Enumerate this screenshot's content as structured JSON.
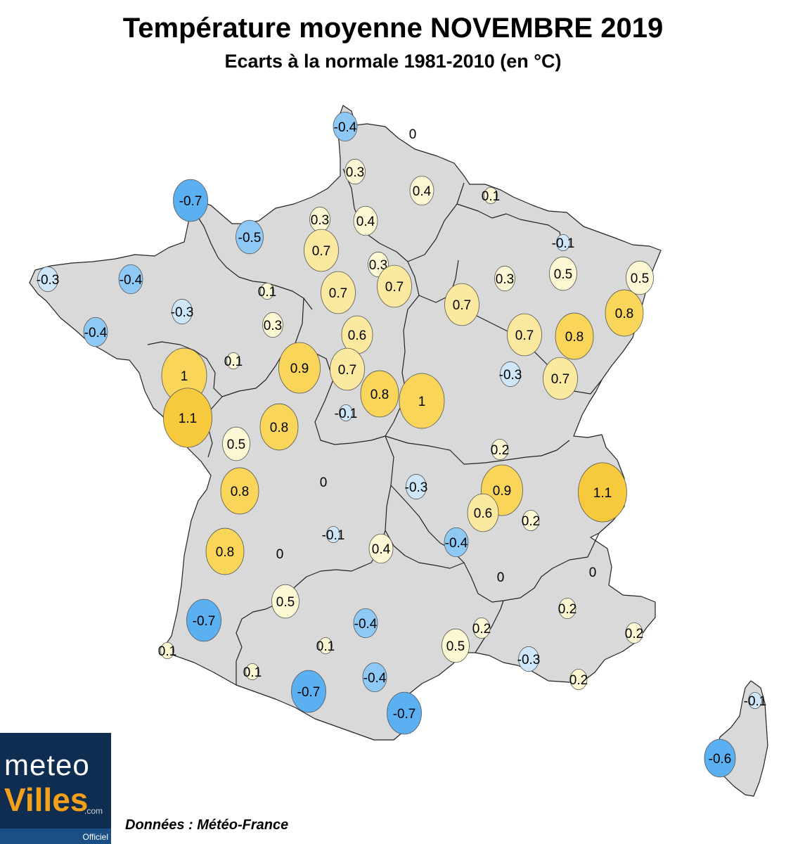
{
  "title": "Température moyenne NOVEMBRE 2019",
  "subtitle": "Ecarts à la normale 1981-2010 (en °C)",
  "source": "Données : Météo-France",
  "logo": {
    "line1": "meteo",
    "line2": "Villes",
    "suffix": ".com",
    "tag": "Officiel"
  },
  "colors": {
    "land": "#d9d9d9",
    "border": "#222222",
    "cold_strong": "#5ab0f0",
    "cold_mid": "#8ec8f5",
    "cold_light": "#cde6f8",
    "warm_light": "#fdf8d4",
    "warm_mid": "#fbe9a0",
    "warm_strong": "#f9d55a",
    "warm_max": "#f7c93c"
  },
  "stations": [
    {
      "label": "-0.4",
      "value": -0.4
    },
    {
      "label": "0",
      "value": 0
    },
    {
      "label": "0.3",
      "value": 0.3
    },
    {
      "label": "0.4",
      "value": 0.4
    },
    {
      "label": "-0.7",
      "value": -0.7
    },
    {
      "label": "0.1",
      "value": 0.1
    },
    {
      "label": "-0.5",
      "value": -0.5
    },
    {
      "label": "0.3",
      "value": 0.3
    },
    {
      "label": "0.4",
      "value": 0.4
    },
    {
      "label": "-0.1",
      "value": -0.1
    },
    {
      "label": "0.7",
      "value": 0.7
    },
    {
      "label": "0.3",
      "value": 0.3
    },
    {
      "label": "0.7",
      "value": 0.7
    },
    {
      "label": "0.5",
      "value": 0.5
    },
    {
      "label": "0.3",
      "value": 0.3
    },
    {
      "label": "0.5",
      "value": 0.5
    },
    {
      "label": "-0.3",
      "value": -0.3
    },
    {
      "label": "-0.4",
      "value": -0.4
    },
    {
      "label": "0.1",
      "value": 0.1
    },
    {
      "label": "0.7",
      "value": 0.7
    },
    {
      "label": "0.7",
      "value": 0.7
    },
    {
      "label": "0.7",
      "value": 0.7
    },
    {
      "label": "0.8",
      "value": 0.8
    },
    {
      "label": "-0.3",
      "value": -0.3
    },
    {
      "label": "0.3",
      "value": 0.3
    },
    {
      "label": "0.6",
      "value": 0.6
    },
    {
      "label": "-0.4",
      "value": -0.4
    },
    {
      "label": "0.8",
      "value": 0.8
    },
    {
      "label": "0.9",
      "value": 0.9
    },
    {
      "label": "0.1",
      "value": 0.1
    },
    {
      "label": "0.7",
      "value": 0.7
    },
    {
      "label": "1",
      "value": 1.0
    },
    {
      "label": "-0.3",
      "value": -0.3
    },
    {
      "label": "0.7",
      "value": 0.7
    },
    {
      "label": "0.8",
      "value": 0.8
    },
    {
      "label": "1",
      "value": 1.0
    },
    {
      "label": "1.1",
      "value": 1.1
    },
    {
      "label": "-0.1",
      "value": -0.1
    },
    {
      "label": "0.8",
      "value": 0.8
    },
    {
      "label": "0.5",
      "value": 0.5
    },
    {
      "label": "0.2",
      "value": 0.2
    },
    {
      "label": "0.8",
      "value": 0.8
    },
    {
      "label": "0",
      "value": 0
    },
    {
      "label": "-0.3",
      "value": -0.3
    },
    {
      "label": "0.9",
      "value": 0.9
    },
    {
      "label": "1.1",
      "value": 1.1
    },
    {
      "label": "0.6",
      "value": 0.6
    },
    {
      "label": "0.2",
      "value": 0.2
    },
    {
      "label": "-0.1",
      "value": -0.1
    },
    {
      "label": "0.8",
      "value": 0.8
    },
    {
      "label": "0",
      "value": 0
    },
    {
      "label": "0.4",
      "value": 0.4
    },
    {
      "label": "-0.4",
      "value": -0.4
    },
    {
      "label": "0",
      "value": 0
    },
    {
      "label": "0",
      "value": 0
    },
    {
      "label": "0.5",
      "value": 0.5
    },
    {
      "label": "0.2",
      "value": 0.2
    },
    {
      "label": "-0.7",
      "value": -0.7
    },
    {
      "label": "-0.4",
      "value": -0.4
    },
    {
      "label": "0.2",
      "value": 0.2
    },
    {
      "label": "0.2",
      "value": 0.2
    },
    {
      "label": "0.1",
      "value": 0.1
    },
    {
      "label": "0.5",
      "value": 0.5
    },
    {
      "label": "0.1",
      "value": 0.1
    },
    {
      "label": "-0.3",
      "value": -0.3
    },
    {
      "label": "0.1",
      "value": 0.1
    },
    {
      "label": "-0.7",
      "value": -0.7
    },
    {
      "label": "-0.4",
      "value": -0.4
    },
    {
      "label": "0.2",
      "value": 0.2
    },
    {
      "label": "-0.7",
      "value": -0.7
    },
    {
      "label": "-0.1",
      "value": -0.1
    },
    {
      "label": "-0.6",
      "value": -0.6
    },
    {
      "label": "0.8",
      "value": 0.8
    },
    {
      "label": "0.8",
      "value": 0.8
    }
  ]
}
